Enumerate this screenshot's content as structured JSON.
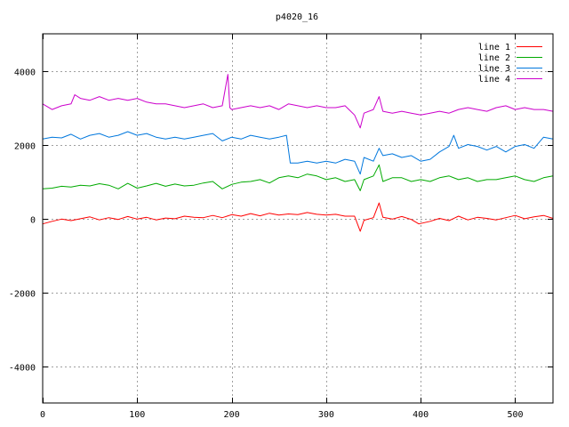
{
  "chart_data": {
    "type": "line",
    "title": "p4020_16",
    "xlabel": "",
    "ylabel": "",
    "xlim": [
      0,
      540
    ],
    "ylim": [
      -5000,
      5000
    ],
    "x_ticks": [
      0,
      100,
      200,
      300,
      400,
      500
    ],
    "y_ticks": [
      -4000,
      -2000,
      0,
      2000,
      4000
    ],
    "grid": true,
    "legend_position": "top-right",
    "series": [
      {
        "name": "line 1",
        "color": "#ff0000",
        "x": [
          0,
          10,
          20,
          30,
          40,
          50,
          60,
          70,
          80,
          90,
          100,
          110,
          120,
          130,
          140,
          150,
          160,
          170,
          180,
          190,
          200,
          210,
          220,
          230,
          240,
          250,
          260,
          270,
          280,
          290,
          300,
          310,
          320,
          330,
          336,
          340,
          350,
          356,
          360,
          370,
          380,
          390,
          398,
          410,
          420,
          430,
          440,
          450,
          460,
          470,
          480,
          490,
          500,
          510,
          520,
          530,
          540
        ],
        "y": [
          -150,
          -80,
          -20,
          -60,
          -10,
          40,
          -40,
          20,
          -30,
          50,
          -20,
          30,
          -40,
          10,
          -10,
          60,
          30,
          20,
          80,
          20,
          100,
          60,
          130,
          70,
          140,
          90,
          120,
          100,
          160,
          110,
          90,
          110,
          60,
          60,
          -350,
          -50,
          20,
          420,
          30,
          -20,
          50,
          -30,
          -150,
          -80,
          0,
          -60,
          60,
          -40,
          30,
          0,
          -40,
          20,
          80,
          -10,
          40,
          80,
          0
        ]
      },
      {
        "name": "line 2",
        "color": "#00aa00",
        "x": [
          0,
          10,
          20,
          30,
          40,
          50,
          60,
          70,
          80,
          90,
          100,
          110,
          120,
          130,
          140,
          150,
          160,
          170,
          180,
          190,
          200,
          210,
          220,
          230,
          240,
          250,
          260,
          270,
          280,
          290,
          300,
          310,
          320,
          330,
          336,
          340,
          350,
          356,
          360,
          370,
          380,
          390,
          400,
          410,
          420,
          430,
          440,
          450,
          460,
          470,
          480,
          490,
          500,
          510,
          520,
          530,
          540
        ],
        "y": [
          800,
          820,
          870,
          850,
          900,
          880,
          940,
          900,
          800,
          950,
          820,
          880,
          950,
          870,
          930,
          880,
          900,
          960,
          1000,
          800,
          920,
          980,
          1000,
          1050,
          960,
          1100,
          1150,
          1100,
          1200,
          1150,
          1050,
          1100,
          1000,
          1050,
          750,
          1050,
          1150,
          1450,
          1000,
          1100,
          1100,
          1000,
          1050,
          1000,
          1100,
          1150,
          1050,
          1100,
          1000,
          1050,
          1050,
          1100,
          1150,
          1050,
          1000,
          1100,
          1150
        ]
      },
      {
        "name": "line 3",
        "color": "#0077dd",
        "x": [
          0,
          10,
          20,
          30,
          40,
          50,
          60,
          70,
          80,
          90,
          100,
          110,
          120,
          130,
          140,
          150,
          160,
          170,
          180,
          190,
          200,
          210,
          220,
          230,
          240,
          250,
          258,
          262,
          270,
          280,
          290,
          300,
          310,
          320,
          330,
          336,
          340,
          350,
          356,
          360,
          370,
          380,
          390,
          400,
          410,
          420,
          430,
          435,
          440,
          450,
          460,
          470,
          480,
          490,
          500,
          510,
          520,
          530,
          540
        ],
        "y": [
          2150,
          2200,
          2180,
          2280,
          2150,
          2250,
          2300,
          2200,
          2250,
          2350,
          2250,
          2300,
          2200,
          2150,
          2200,
          2150,
          2200,
          2250,
          2300,
          2100,
          2200,
          2150,
          2250,
          2200,
          2150,
          2200,
          2250,
          1500,
          1500,
          1550,
          1500,
          1550,
          1500,
          1600,
          1550,
          1200,
          1650,
          1550,
          1900,
          1700,
          1750,
          1650,
          1700,
          1550,
          1600,
          1800,
          1950,
          2250,
          1900,
          2000,
          1950,
          1850,
          1950,
          1800,
          1950,
          2000,
          1900,
          2200,
          2150
        ]
      },
      {
        "name": "line 4",
        "color": "#cc00cc",
        "x": [
          0,
          10,
          20,
          30,
          34,
          40,
          50,
          60,
          70,
          80,
          90,
          100,
          110,
          120,
          130,
          140,
          150,
          160,
          170,
          180,
          190,
          196,
          198,
          200,
          210,
          220,
          230,
          240,
          250,
          260,
          270,
          280,
          290,
          300,
          310,
          320,
          330,
          336,
          340,
          350,
          356,
          360,
          370,
          380,
          390,
          400,
          410,
          420,
          430,
          440,
          450,
          460,
          470,
          480,
          490,
          500,
          510,
          520,
          530,
          540
        ],
        "y": [
          3100,
          2950,
          3050,
          3100,
          3350,
          3250,
          3200,
          3300,
          3200,
          3250,
          3200,
          3250,
          3150,
          3100,
          3100,
          3050,
          3000,
          3050,
          3100,
          3000,
          3050,
          3900,
          3000,
          2950,
          3000,
          3050,
          3000,
          3050,
          2950,
          3100,
          3050,
          3000,
          3050,
          3000,
          3000,
          3050,
          2800,
          2450,
          2850,
          2950,
          3300,
          2900,
          2850,
          2900,
          2850,
          2800,
          2850,
          2900,
          2850,
          2950,
          3000,
          2950,
          2900,
          3000,
          3050,
          2950,
          3000,
          2950,
          2950,
          2900
        ]
      }
    ]
  }
}
